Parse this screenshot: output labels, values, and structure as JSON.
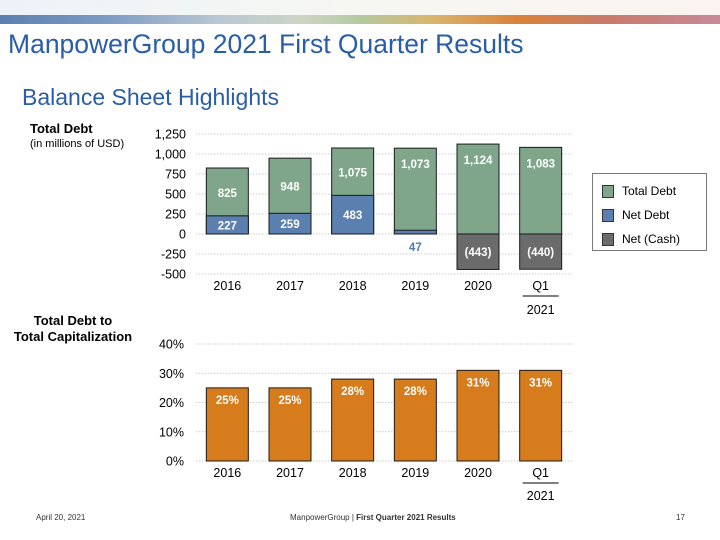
{
  "slide": {
    "title": "ManpowerGroup 2021 First Quarter Results",
    "subtitle": "Balance Sheet Highlights",
    "debt_label": "Total Debt",
    "debt_unit": "(in millions of USD)",
    "cap_label_line1": "Total Debt to",
    "cap_label_line2": "Total Capitalization"
  },
  "footer": {
    "date": "April 20, 2021",
    "company": "ManpowerGroup",
    "separator": " | ",
    "report": "First Quarter 2021 Results",
    "page": "17"
  },
  "colors": {
    "total_debt": "#7fa68a",
    "net_debt": "#5b7fae",
    "net_cash": "#6b6b6b",
    "cap_bar": "#d67c1c",
    "accent_title": "#2a5da8",
    "net_debt_label_outside": "#4a7ab8"
  },
  "legend": {
    "items": [
      {
        "label": "Total Debt",
        "color": "#7fa68a"
      },
      {
        "label": "Net Debt",
        "color": "#5b7fae"
      },
      {
        "label": "Net (Cash)",
        "color": "#6b6b6b"
      }
    ]
  },
  "chart_data": [
    {
      "type": "bar",
      "title": "Total Debt",
      "subtitle": "(in millions of USD)",
      "categories": [
        "2016",
        "2017",
        "2018",
        "2019",
        "2020",
        "Q1"
      ],
      "category_sublabel": {
        "index": 5,
        "text": "2021"
      },
      "series": [
        {
          "name": "Total Debt",
          "values": [
            825,
            948,
            1075,
            1073,
            1124,
            1083
          ],
          "labels": [
            "825",
            "948",
            "1,075",
            "1,073",
            "1,124",
            "1,083"
          ]
        },
        {
          "name": "Net Debt",
          "values": [
            227,
            259,
            483,
            47,
            null,
            null
          ],
          "labels": [
            "227",
            "259",
            "483",
            "47",
            "",
            ""
          ]
        },
        {
          "name": "Net (Cash)",
          "values": [
            null,
            null,
            null,
            null,
            -443,
            -440
          ],
          "labels": [
            "",
            "",
            "",
            "",
            "(443)",
            "(440)"
          ]
        }
      ],
      "ylim": [
        -500,
        1250
      ],
      "yticks": [
        -500,
        -250,
        0,
        250,
        500,
        750,
        1000,
        1250
      ],
      "ytick_labels": [
        "-500",
        "-250",
        "0",
        "250",
        "500",
        "750",
        "1,000",
        "1,250"
      ],
      "grid": true,
      "legend": "right"
    },
    {
      "type": "bar",
      "title": "Total Debt to Total Capitalization",
      "categories": [
        "2016",
        "2017",
        "2018",
        "2019",
        "2020",
        "Q1"
      ],
      "category_sublabel": {
        "index": 5,
        "text": "2021"
      },
      "values": [
        25,
        25,
        28,
        28,
        31,
        31
      ],
      "labels": [
        "25%",
        "25%",
        "28%",
        "28%",
        "31%",
        "31%"
      ],
      "ylim": [
        0,
        40
      ],
      "yticks": [
        0,
        10,
        20,
        30,
        40
      ],
      "ytick_labels": [
        "0%",
        "10%",
        "20%",
        "30%",
        "40%"
      ],
      "grid": true
    }
  ]
}
